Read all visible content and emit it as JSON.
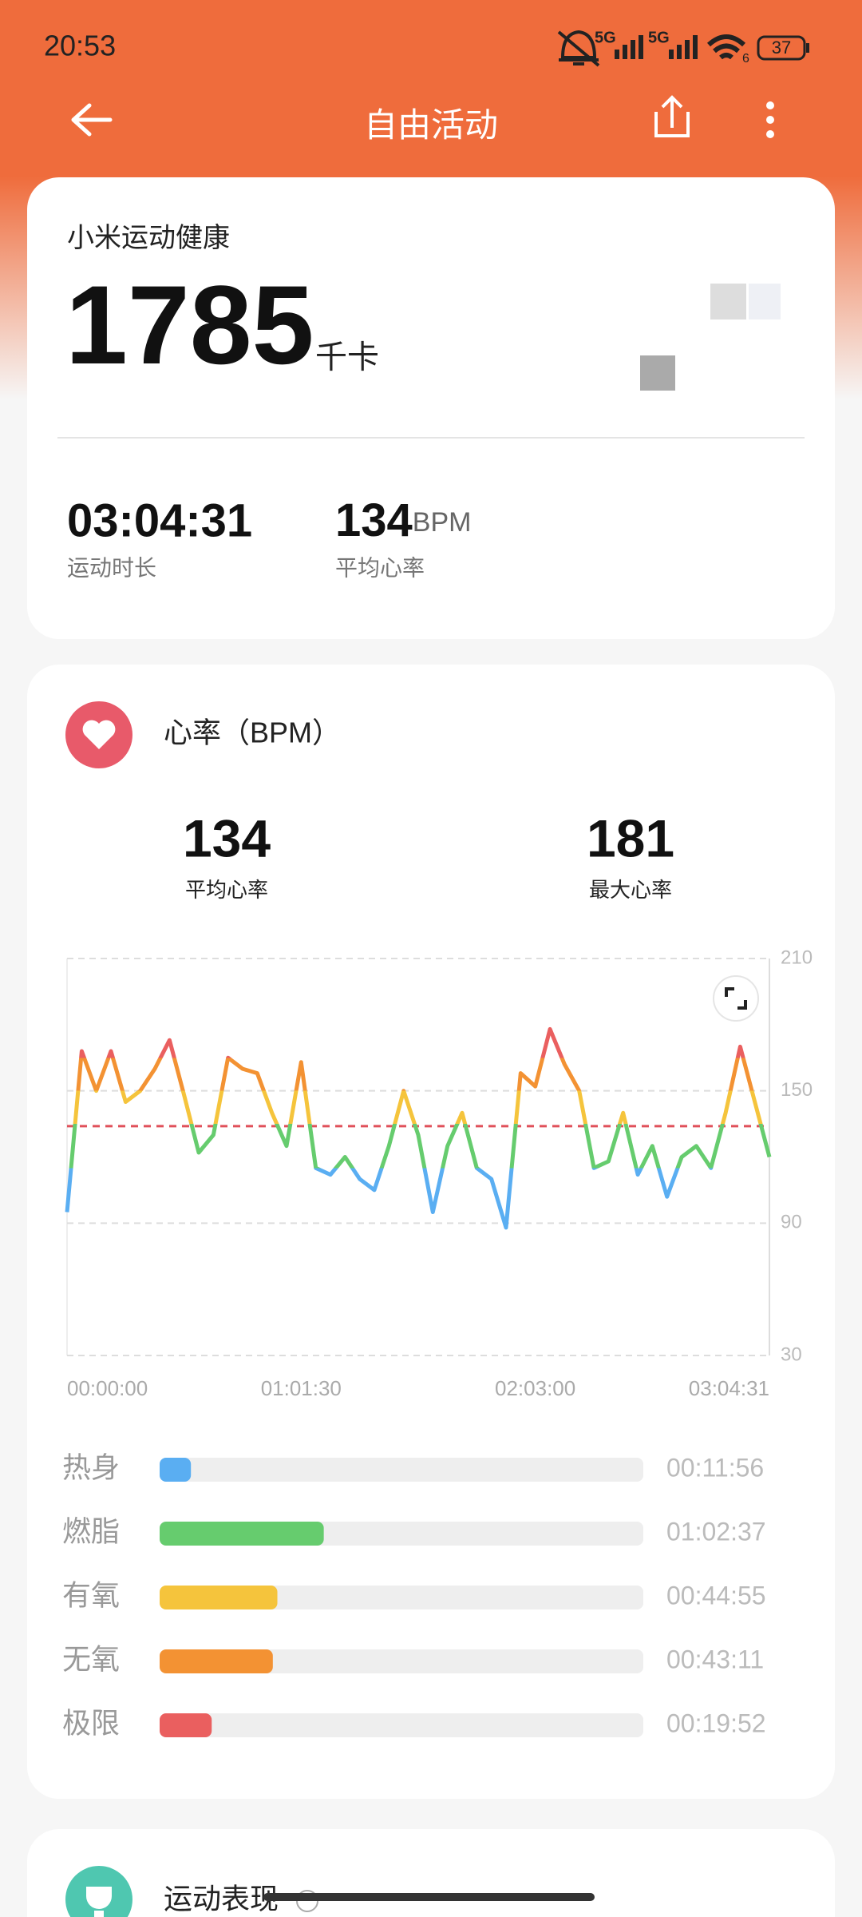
{
  "status_bar": {
    "time": "20:53",
    "network_1": "5G",
    "network_2": "5G",
    "wifi_band": "6",
    "battery": "37"
  },
  "header": {
    "title": "自由活动"
  },
  "summary": {
    "brand": "小米运动健康",
    "calories": "1785",
    "calories_unit": "千卡",
    "duration": "03:04:31",
    "duration_label": "运动时长",
    "avg_hr": "134",
    "avg_hr_unit": "BPM",
    "avg_hr_label": "平均心率"
  },
  "heart_rate": {
    "title": "心率（BPM）",
    "avg": 134,
    "avg_label": "平均心率",
    "max": 181,
    "max_label": "最大心率",
    "chart_data": {
      "type": "line",
      "x": [
        0,
        231,
        461,
        692,
        923,
        1153,
        1384,
        1615,
        1845,
        2076,
        2307,
        2537,
        2768,
        2998,
        3229,
        3460,
        3690,
        3921,
        4152,
        4382,
        4613,
        4844,
        5074,
        5305,
        5536,
        5766,
        5997,
        6228,
        6458,
        6689,
        6920,
        7150,
        7381,
        7612,
        7842,
        8073,
        8304,
        8534,
        8765,
        8996,
        9226,
        9457,
        9688,
        9918,
        10149,
        10380,
        10610,
        10841,
        11071
      ],
      "values": [
        95,
        168,
        150,
        168,
        145,
        150,
        160,
        173,
        148,
        122,
        130,
        165,
        160,
        158,
        140,
        125,
        163,
        115,
        112,
        120,
        110,
        105,
        125,
        150,
        130,
        95,
        125,
        140,
        115,
        110,
        88,
        158,
        152,
        178,
        162,
        150,
        115,
        118,
        140,
        112,
        125,
        102,
        120,
        125,
        115,
        140,
        170,
        145,
        120
      ],
      "xlim": [
        0,
        11071
      ],
      "xticks": [
        {
          "value": 0,
          "label": "00:00:00"
        },
        {
          "value": 3690,
          "label": "01:01:30"
        },
        {
          "value": 7380,
          "label": "02:03:00"
        },
        {
          "value": 11071,
          "label": "03:04:31"
        }
      ],
      "ylim": [
        30,
        210
      ],
      "yticks": [
        30,
        90,
        150,
        210
      ],
      "grid": true,
      "reference_color": "#e0505a"
    },
    "zones": [
      {
        "name": "热身",
        "time": "00:11:56",
        "color": "#5aaef2"
      },
      {
        "name": "燃脂",
        "time": "01:02:37",
        "color": "#66cc6e"
      },
      {
        "name": "有氧",
        "time": "00:44:55",
        "color": "#f5c43c"
      },
      {
        "name": "无氧",
        "time": "00:43:11",
        "color": "#f39233"
      },
      {
        "name": "极限",
        "time": "00:19:52",
        "color": "#ea5f5f"
      }
    ]
  },
  "performance": {
    "title": "运动表现"
  }
}
